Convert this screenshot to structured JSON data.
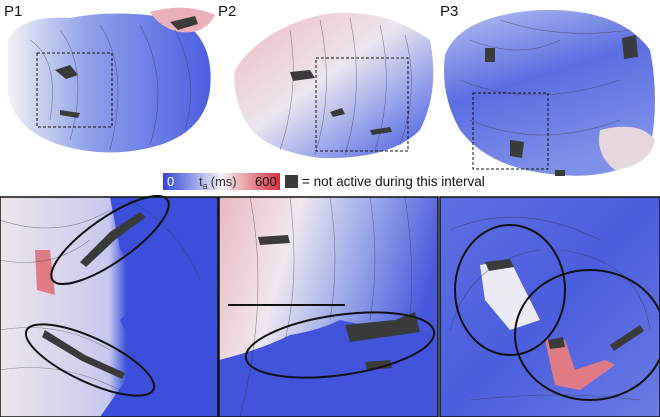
{
  "panels": [
    {
      "label": "P1"
    },
    {
      "label": "P2"
    },
    {
      "label": "P3"
    }
  ],
  "colorbar": {
    "min": 0,
    "max": 600,
    "symbol": "t",
    "subscript": "a",
    "unit": "(ms)"
  },
  "legend": {
    "text": "= not active during this interval"
  }
}
